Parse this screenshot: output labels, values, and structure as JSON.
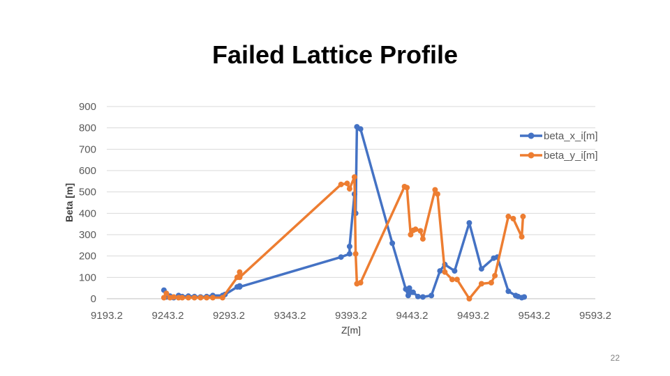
{
  "slide": {
    "title": "Failed Lattice Profile",
    "page_number": "22"
  },
  "chart_data": {
    "type": "scatter",
    "mode": "lines+markers",
    "xlabel": "Z[m]",
    "ylabel": "Beta [m]",
    "xlim": [
      9193.2,
      9593.2
    ],
    "ylim": [
      0,
      900
    ],
    "x_ticks": [
      "9193.2",
      "9243.2",
      "9293.2",
      "9343.2",
      "9393.2",
      "9443.2",
      "9493.2",
      "9543.2",
      "9593.2"
    ],
    "y_ticks": [
      "0",
      "100",
      "200",
      "300",
      "400",
      "500",
      "600",
      "700",
      "800",
      "900"
    ],
    "grid": "horizontal",
    "legend_position": "right",
    "series": [
      {
        "name": "beta_x_i[m]",
        "color": "#4472c4",
        "points": [
          [
            9240,
            40
          ],
          [
            9242,
            8
          ],
          [
            9245,
            12
          ],
          [
            9248,
            5
          ],
          [
            9252,
            15
          ],
          [
            9255,
            10
          ],
          [
            9260,
            12
          ],
          [
            9265,
            10
          ],
          [
            9270,
            8
          ],
          [
            9275,
            10
          ],
          [
            9280,
            15
          ],
          [
            9288,
            15
          ],
          [
            9290,
            20
          ],
          [
            9300,
            55
          ],
          [
            9302,
            60
          ],
          [
            9302,
            55
          ],
          [
            9385,
            195
          ],
          [
            9392,
            210
          ],
          [
            9392,
            245
          ],
          [
            9396,
            490
          ],
          [
            9397,
            400
          ],
          [
            9398,
            805
          ],
          [
            9401,
            795
          ],
          [
            9427,
            260
          ],
          [
            9438,
            45
          ],
          [
            9440,
            15
          ],
          [
            9441,
            50
          ],
          [
            9442,
            30
          ],
          [
            9444,
            30
          ],
          [
            9448,
            10
          ],
          [
            9452,
            8
          ],
          [
            9459,
            15
          ],
          [
            9466,
            130
          ],
          [
            9470,
            160
          ],
          [
            9478,
            130
          ],
          [
            9490,
            355
          ],
          [
            9500,
            140
          ],
          [
            9510,
            190
          ],
          [
            9513,
            195
          ],
          [
            9522,
            35
          ],
          [
            9528,
            15
          ],
          [
            9530,
            10
          ],
          [
            9533,
            5
          ],
          [
            9535,
            8
          ]
        ]
      },
      {
        "name": "beta_y_i[m]",
        "color": "#ed7d31",
        "points": [
          [
            9240,
            5
          ],
          [
            9242,
            25
          ],
          [
            9245,
            5
          ],
          [
            9248,
            8
          ],
          [
            9252,
            5
          ],
          [
            9255,
            5
          ],
          [
            9260,
            5
          ],
          [
            9265,
            5
          ],
          [
            9270,
            5
          ],
          [
            9275,
            5
          ],
          [
            9280,
            5
          ],
          [
            9288,
            5
          ],
          [
            9300,
            100
          ],
          [
            9302,
            125
          ],
          [
            9302,
            100
          ],
          [
            9385,
            535
          ],
          [
            9390,
            540
          ],
          [
            9392,
            515
          ],
          [
            9396,
            570
          ],
          [
            9397,
            210
          ],
          [
            9398,
            70
          ],
          [
            9401,
            75
          ],
          [
            9437,
            525
          ],
          [
            9439,
            520
          ],
          [
            9442,
            300
          ],
          [
            9444,
            320
          ],
          [
            9446,
            325
          ],
          [
            9450,
            318
          ],
          [
            9452,
            280
          ],
          [
            9462,
            510
          ],
          [
            9464,
            490
          ],
          [
            9470,
            125
          ],
          [
            9476,
            90
          ],
          [
            9480,
            90
          ],
          [
            9490,
            0
          ],
          [
            9500,
            70
          ],
          [
            9508,
            75
          ],
          [
            9511,
            108
          ],
          [
            9522,
            385
          ],
          [
            9526,
            375
          ],
          [
            9533,
            290
          ],
          [
            9534,
            385
          ]
        ]
      }
    ]
  }
}
